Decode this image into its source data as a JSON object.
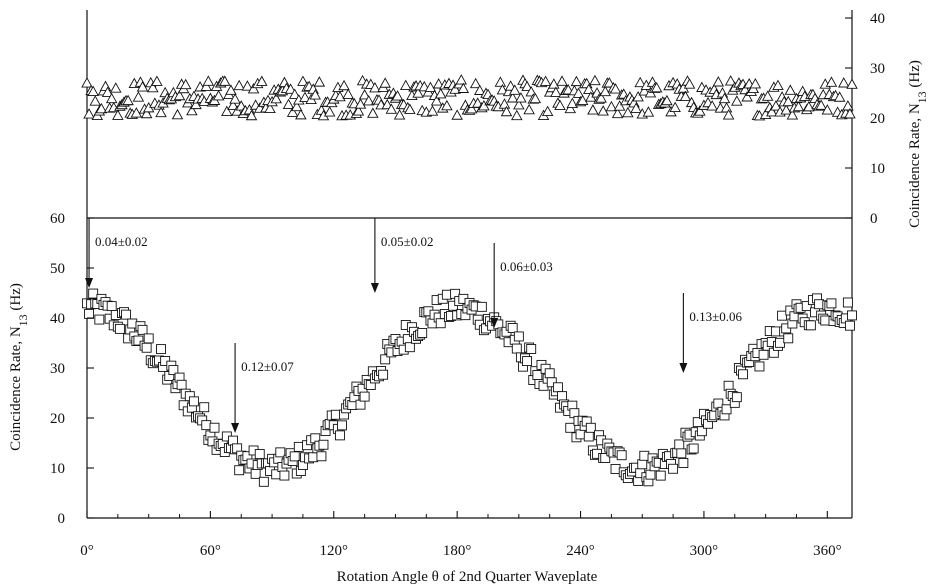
{
  "chart_data": {
    "type": "scatter",
    "xlabel": "Rotation Angle θ of 2nd Quarter Waveplate",
    "x_ticks": [
      0,
      60,
      120,
      180,
      240,
      300,
      360
    ],
    "x_tick_labels": [
      "0°",
      "60°",
      "120°",
      "180°",
      "240°",
      "300°",
      "360°"
    ],
    "xlim": [
      0,
      372
    ],
    "bottom_panel": {
      "ylabel_main": "Coincidence Rate,  N",
      "ylabel_sub": "13",
      "ylabel_unit": " (Hz)",
      "ylim": [
        0,
        60
      ],
      "y_ticks": [
        0,
        10,
        20,
        30,
        40,
        50,
        60
      ],
      "y_tick_labels": [
        "0",
        "10",
        "20",
        "30",
        "40",
        "50",
        "60"
      ],
      "marker": "square",
      "model": {
        "offset": 26,
        "amplitude": 16,
        "period_deg": 180,
        "min_at_deg": 90,
        "spread": 3,
        "sample_step_deg": 1
      }
    },
    "top_panel": {
      "ylabel_main": "Coincidence Rate,  N",
      "ylabel_sub": "13",
      "ylabel_unit": " (Hz)",
      "axis_side": "right",
      "ylim": [
        0,
        40
      ],
      "y_ticks": [
        0,
        10,
        20,
        30,
        40
      ],
      "y_tick_labels": [
        "0",
        "10",
        "20",
        "30",
        "40"
      ],
      "marker": "triangle",
      "model": {
        "mean": 24,
        "spread": 3,
        "sample_step_deg": 1
      }
    },
    "annotations": [
      {
        "text": "0.04±0.02",
        "x": 1,
        "y_top": 60,
        "y_tip": 46
      },
      {
        "text": "0.12±0.07",
        "x": 72,
        "y_top": 35,
        "y_tip": 17
      },
      {
        "text": "0.05±0.02",
        "x": 140,
        "y_top": 60,
        "y_tip": 45
      },
      {
        "text": "0.06±0.03",
        "x": 198,
        "y_top": 55,
        "y_tip": 38
      },
      {
        "text": "0.13±0.06",
        "x": 290,
        "y_top": 45,
        "y_tip": 29
      }
    ]
  }
}
